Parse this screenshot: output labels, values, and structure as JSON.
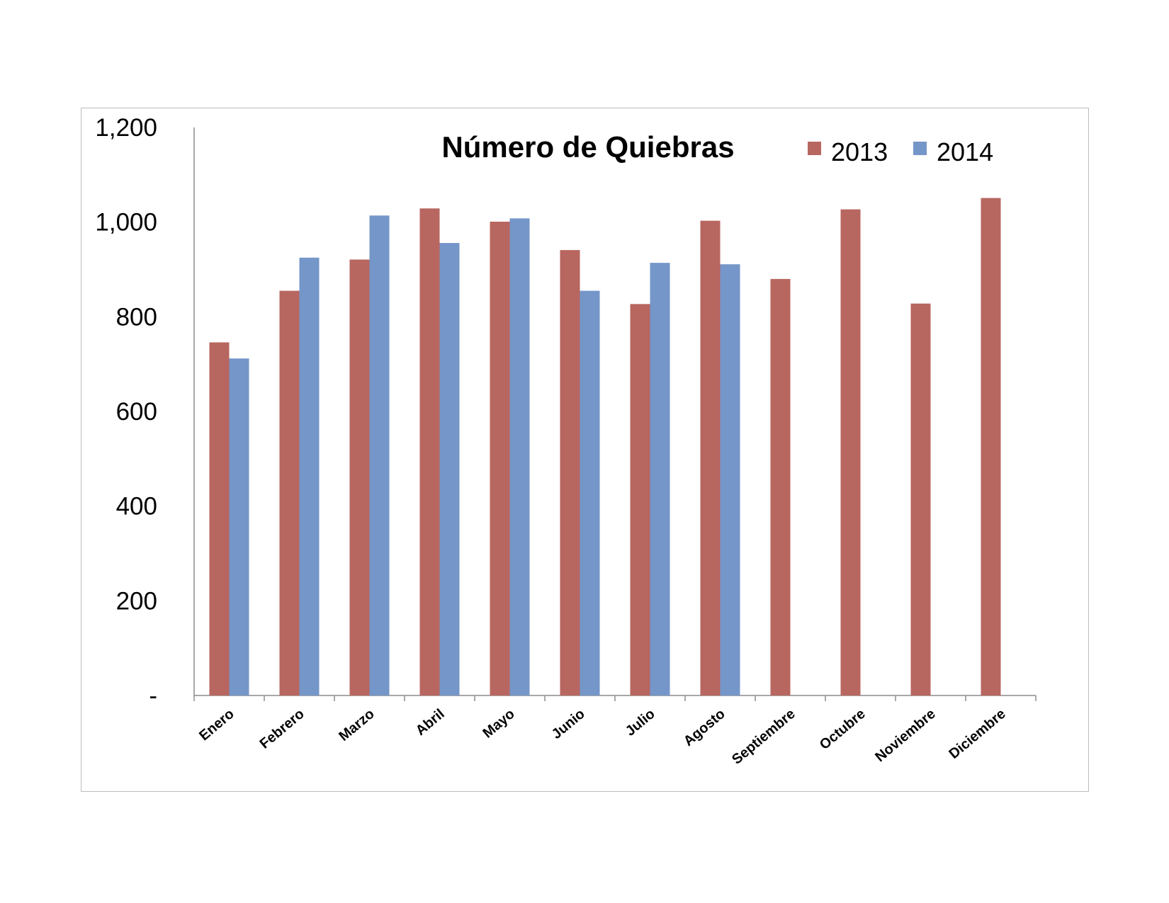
{
  "chart_data": {
    "type": "bar",
    "title": "Número de Quiebras",
    "categories": [
      "Enero",
      "Febrero",
      "Marzo",
      "Abril",
      "Mayo",
      "Junio",
      "Julio",
      "Agosto",
      "Septiembre",
      "Octubre",
      "Noviembre",
      "Diciembre"
    ],
    "series": [
      {
        "name": "2013",
        "color": "#b86660",
        "values": [
          746,
          855,
          921,
          1029,
          1001,
          941,
          827,
          1003,
          880,
          1027,
          828,
          1051
        ]
      },
      {
        "name": "2014",
        "color": "#7596c8",
        "values": [
          712,
          925,
          1014,
          956,
          1008,
          855,
          914,
          911,
          null,
          null,
          null,
          null
        ]
      }
    ],
    "ylim": [
      0,
      1200
    ],
    "yticks": [
      0,
      200,
      400,
      600,
      800,
      1000,
      1200
    ],
    "ytick_labels": [
      "-",
      "200",
      "400",
      "600",
      "800",
      "1,000",
      "1,200"
    ],
    "xlabel": "",
    "ylabel": "",
    "grid": false,
    "legend_position": "top-right"
  }
}
